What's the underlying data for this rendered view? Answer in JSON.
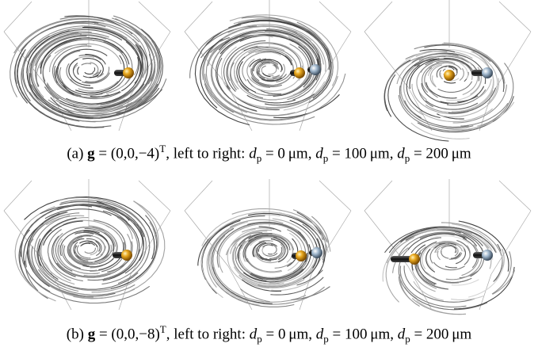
{
  "captions": [
    {
      "label": "(a)",
      "vector": "g",
      "equation": "= (0,0,−4)",
      "superscript": "T",
      "text": ", left to right:",
      "items": [
        {
          "symbol": "d",
          "subscript": "p",
          "value": "= 0 μm"
        },
        {
          "symbol": "d",
          "subscript": "p",
          "value": "= 100 μm"
        },
        {
          "symbol": "d",
          "subscript": "p",
          "value": "= 200 μm"
        }
      ]
    },
    {
      "label": "(b)",
      "vector": "g",
      "equation": "= (0,0,−8)",
      "superscript": "T",
      "text": ", left to right:",
      "items": [
        {
          "symbol": "d",
          "subscript": "p",
          "value": "= 0 μm"
        },
        {
          "symbol": "d",
          "subscript": "p",
          "value": "= 100 μm"
        },
        {
          "symbol": "d",
          "subscript": "p",
          "value": "= 200 μm"
        }
      ]
    }
  ]
}
